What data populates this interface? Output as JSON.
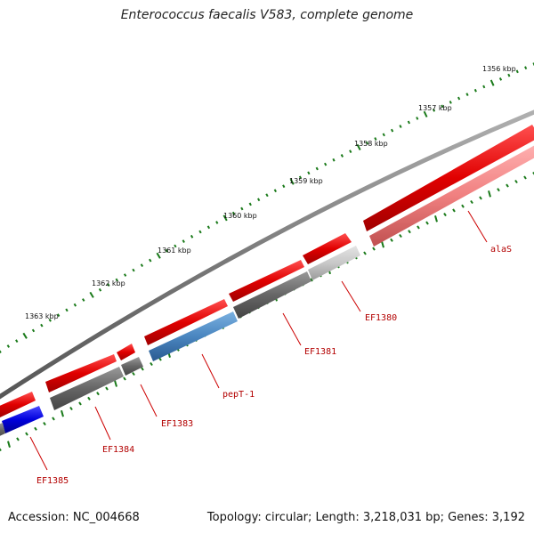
{
  "title": "Enterococcus faecalis V583, complete genome",
  "footer": {
    "accession": "Accession: NC_004668",
    "summary": "Topology: circular; Length: 3,218,031 bp; Genes: 3,192"
  },
  "scale_labels": [
    "1356 kbp",
    "1357 kbp",
    "1358 kbp",
    "1359 kbp",
    "1360 kbp",
    "1361 kbp",
    "1362 kbp",
    "1363 kbp"
  ],
  "gene_labels": [
    "alaS",
    "EF1380",
    "EF1381",
    "pepT-1",
    "EF1383",
    "EF1384",
    "EF1385"
  ],
  "colors": {
    "backbone": "#888888",
    "gene": "#e00000",
    "cds": "#666666",
    "highlight_blue": "#4a86c0",
    "deep_blue": "#0000dd",
    "pink": "#f08080",
    "light_gray": "#c8c8c8",
    "tick": "#1a7a1a",
    "label": "#b30000"
  }
}
